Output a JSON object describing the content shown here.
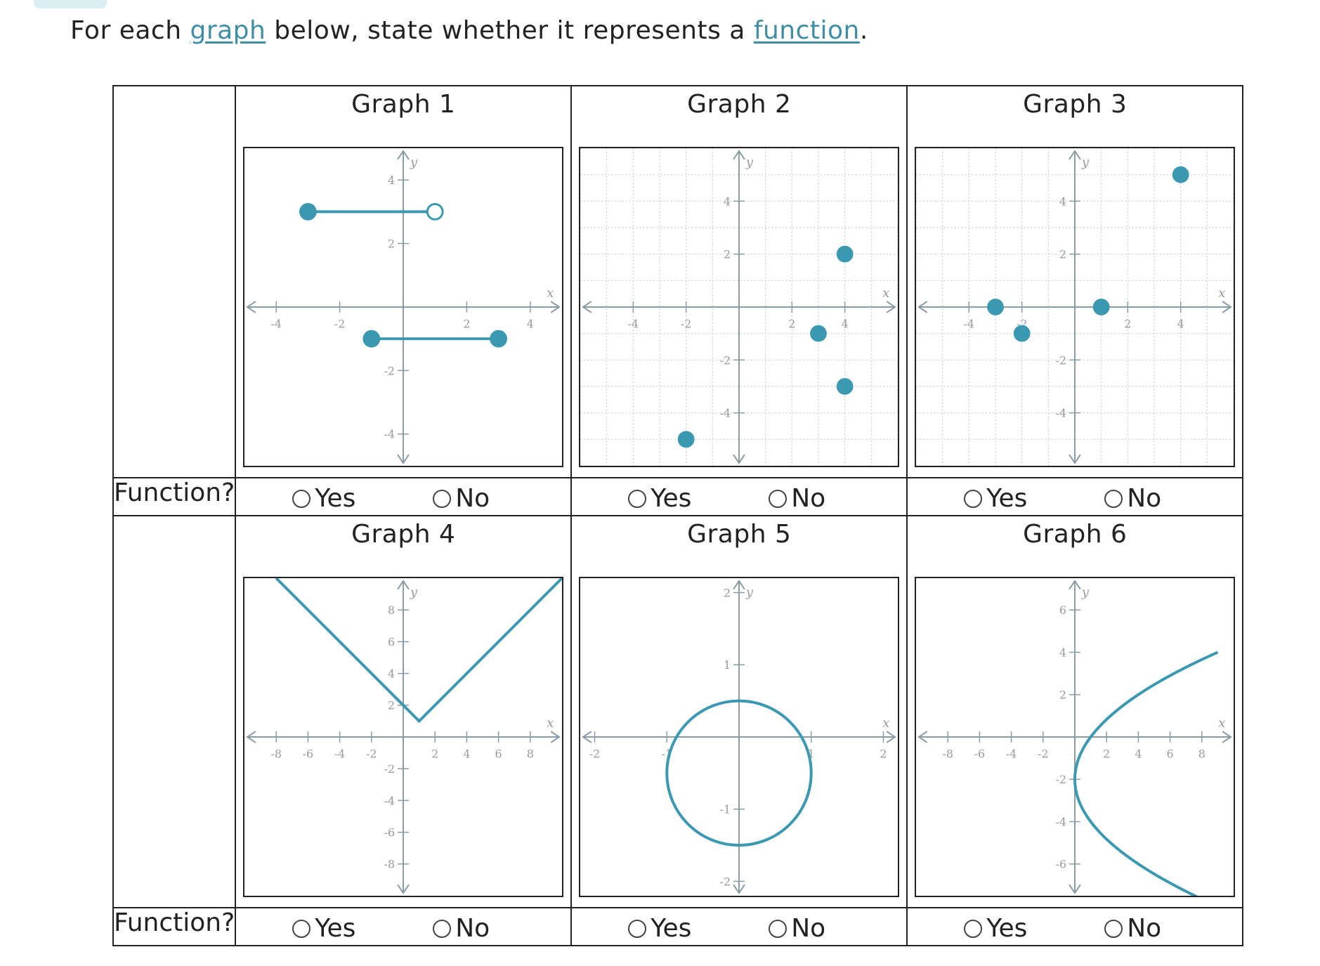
{
  "question": {
    "before": "For each ",
    "link1": "graph",
    "middle": " below, state whether it represents a ",
    "link2": "function",
    "after": "."
  },
  "row_label": "Function?",
  "options": {
    "yes": "Yes",
    "no": "No"
  },
  "colors": {
    "curve": "#3a98b1",
    "axis": "#8a9ca3",
    "link": "#3f8ea6"
  },
  "graphs": [
    {
      "title": "Graph 1",
      "axis_labels": {
        "x": "x",
        "y": "y"
      },
      "chart_data": {
        "type": "line",
        "xlim": [
          -5,
          5
        ],
        "ylim": [
          -5,
          5
        ],
        "grid": false,
        "xticks": [
          -4,
          -2,
          2,
          4
        ],
        "yticks": [
          -4,
          -2,
          2,
          4
        ],
        "segments": [
          {
            "from": [
              -3,
              3
            ],
            "to": [
              1,
              3
            ],
            "from_closed": true,
            "to_closed": false
          },
          {
            "from": [
              -1,
              -1
            ],
            "to": [
              3,
              -1
            ],
            "from_closed": true,
            "to_closed": true
          }
        ]
      }
    },
    {
      "title": "Graph 2",
      "axis_labels": {
        "x": "x",
        "y": "y"
      },
      "chart_data": {
        "type": "scatter",
        "xlim": [
          -6,
          6
        ],
        "ylim": [
          -6,
          6
        ],
        "grid": true,
        "xticks": [
          -4,
          -2,
          2,
          4
        ],
        "yticks": [
          -4,
          -2,
          2,
          4
        ],
        "points": [
          [
            4,
            2
          ],
          [
            3,
            -1
          ],
          [
            4,
            -3
          ],
          [
            -2,
            -5
          ]
        ]
      }
    },
    {
      "title": "Graph 3",
      "axis_labels": {
        "x": "x",
        "y": "y"
      },
      "chart_data": {
        "type": "scatter",
        "xlim": [
          -6,
          6
        ],
        "ylim": [
          -6,
          6
        ],
        "grid": true,
        "xticks": [
          -4,
          -2,
          2,
          4
        ],
        "yticks": [
          -4,
          -2,
          2,
          4
        ],
        "points": [
          [
            -3,
            0
          ],
          [
            -2,
            -1
          ],
          [
            1,
            0
          ],
          [
            4,
            5
          ]
        ]
      }
    },
    {
      "title": "Graph 4",
      "axis_labels": {
        "x": "x",
        "y": "y"
      },
      "chart_data": {
        "type": "line",
        "xlim": [
          -10,
          10
        ],
        "ylim": [
          -10,
          10
        ],
        "grid": false,
        "xticks": [
          -8,
          -6,
          -4,
          -2,
          2,
          4,
          6,
          8
        ],
        "yticks": [
          -8,
          -6,
          -4,
          -2,
          2,
          4,
          6,
          8
        ],
        "points": [
          [
            -8,
            10
          ],
          [
            1,
            1
          ],
          [
            10,
            10
          ]
        ]
      }
    },
    {
      "title": "Graph 5",
      "axis_labels": {
        "x": "x",
        "y": "y"
      },
      "chart_data": {
        "type": "line",
        "xlim": [
          -2.2,
          2.2
        ],
        "ylim": [
          -2.2,
          2.2
        ],
        "grid": false,
        "xticks": [
          -2,
          -1,
          1,
          2
        ],
        "yticks": [
          -2,
          -1,
          1,
          2
        ],
        "circle": {
          "center": [
            0,
            -0.5
          ],
          "radius": 1
        }
      }
    },
    {
      "title": "Graph 6",
      "axis_labels": {
        "x": "x",
        "y": "y"
      },
      "chart_data": {
        "type": "line",
        "xlim": [
          -10,
          10
        ],
        "ylim": [
          -7.5,
          7.5
        ],
        "grid": false,
        "xticks": [
          -8,
          -6,
          -4,
          -2,
          2,
          4,
          6,
          8
        ],
        "yticks": [
          -6,
          -4,
          -2,
          2,
          4,
          6
        ],
        "parabola": {
          "equation": "x = 0.25*(y+2)^2",
          "vertex": [
            0,
            -2
          ],
          "y_range": [
            -8,
            4
          ]
        }
      }
    }
  ]
}
